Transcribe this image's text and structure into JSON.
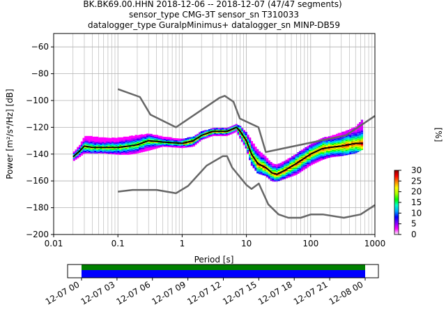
{
  "title_lines": [
    "BK.BK69.00.HHN   2018-12-06 -- 2018-12-07  (47/47 segments)",
    "sensor_type CMG-3T sensor_sn T310033",
    "datalogger_type GuralpMinimus+ datalogger_sn MINP-DB59"
  ],
  "chart_data": [
    {
      "type": "heatmap",
      "xlabel": "Period [s]",
      "ylabel": "Power [m²/s⁴/Hz] [dB]",
      "x_scale": "log",
      "xlim": [
        0.01,
        1000
      ],
      "ylim": [
        -200,
        -50
      ],
      "x_ticks": [
        0.01,
        0.1,
        1,
        10,
        100,
        1000
      ],
      "x_tick_labels": [
        "0.01",
        "0.1",
        "1",
        "10",
        "100",
        "1000"
      ],
      "y_ticks": [
        -200,
        -180,
        -160,
        -140,
        -120,
        -100,
        -80,
        -60
      ],
      "y_tick_labels": [
        "−200",
        "−180",
        "−160",
        "−140",
        "−120",
        "−100",
        "−80",
        "−60"
      ],
      "grid": true,
      "colorbar": {
        "label": "[%]",
        "range": [
          0,
          30
        ],
        "ticks": [
          0,
          5,
          10,
          15,
          20,
          25,
          30
        ],
        "colors": [
          "#ffffff",
          "#ff00ff",
          "#7a00ff",
          "#0000ff",
          "#00aaff",
          "#00ffcc",
          "#00ff00",
          "#aaff00",
          "#ffff00",
          "#ff8800",
          "#ff0000",
          "#880000"
        ]
      },
      "series": [
        {
          "role": "noise-model-high",
          "color": "#666666",
          "x": [
            0.1,
            0.22,
            0.32,
            0.8,
            3.8,
            4.6,
            6.3,
            7.9,
            15.4,
            20.0,
            354.8,
            1000
          ],
          "y": [
            -91.5,
            -97.4,
            -110.5,
            -120.0,
            -98.0,
            -96.5,
            -101.0,
            -113.5,
            -120.0,
            -138.5,
            -126.0,
            -111.5
          ]
        },
        {
          "role": "noise-model-low",
          "color": "#666666",
          "x": [
            0.1,
            0.17,
            0.4,
            0.8,
            1.24,
            2.4,
            4.3,
            5.0,
            6.0,
            10.0,
            12.0,
            15.6,
            21.9,
            31.6,
            45.0,
            70.0,
            101.0,
            154.0,
            328.0,
            600.0,
            1000
          ],
          "y": [
            -168.0,
            -166.7,
            -166.7,
            -169.2,
            -163.7,
            -148.6,
            -141.5,
            -141.5,
            -150.0,
            -163.0,
            -166.0,
            -162.0,
            -177.5,
            -185.0,
            -187.5,
            -187.5,
            -185.0,
            -185.0,
            -187.5,
            -185.0,
            -178.0
          ]
        },
        {
          "role": "mode",
          "color": "#000000",
          "x": [
            0.02,
            0.025,
            0.03,
            0.04,
            0.06,
            0.1,
            0.15,
            0.2,
            0.3,
            0.5,
            1.0,
            1.5,
            2.0,
            3.0,
            5.0,
            7.0,
            8.0,
            10.0,
            12.0,
            15.0,
            20.0,
            25.0,
            30.0,
            40.0,
            60.0,
            100.0,
            150.0,
            200.0,
            300.0,
            500.0,
            650.0
          ],
          "y": [
            -142,
            -138,
            -134,
            -135,
            -135,
            -135,
            -134,
            -133,
            -130,
            -131,
            -132,
            -130,
            -126,
            -123,
            -123,
            -120,
            -123,
            -130,
            -140,
            -147,
            -150,
            -154,
            -155,
            -152,
            -147,
            -140,
            -136,
            -135,
            -134,
            -132,
            -132
          ]
        }
      ],
      "heatmap_bands": [
        {
          "x": [
            0.02,
            0.025,
            0.03,
            0.04,
            0.06,
            0.1,
            0.15,
            0.2,
            0.3,
            0.5,
            1.0,
            1.5,
            2.0,
            3.0,
            5.0,
            7.0,
            8.0,
            10.0,
            12.0,
            15.0,
            20.0,
            25.0,
            30.0,
            40.0,
            60.0,
            100.0,
            150.0,
            200.0,
            300.0,
            500.0,
            650.0
          ],
          "y_high": [
            -139,
            -134,
            -127,
            -127,
            -128,
            -128,
            -127,
            -126,
            -125,
            -127,
            -129,
            -127,
            -123,
            -121,
            -121,
            -118,
            -119,
            -124,
            -130,
            -137,
            -142,
            -147,
            -148,
            -145,
            -140,
            -133,
            -128,
            -127,
            -124,
            -120,
            -114
          ],
          "y_low": [
            -145,
            -142,
            -139,
            -139,
            -139,
            -140,
            -140,
            -139,
            -137,
            -134,
            -135,
            -134,
            -129,
            -126,
            -126,
            -123,
            -128,
            -136,
            -148,
            -154,
            -156,
            -160,
            -160,
            -158,
            -155,
            -148,
            -144,
            -142,
            -141,
            -139,
            -136
          ]
        }
      ]
    },
    {
      "type": "timeline",
      "xlim_labels": [
        "12-07 00",
        "12-08 00"
      ],
      "tick_labels": [
        "12-07 00",
        "12-07 03",
        "12-07 06",
        "12-07 09",
        "12-07 12",
        "12-07 15",
        "12-07 18",
        "12-07 21",
        "12-08 00"
      ],
      "rows": [
        {
          "role": "segments",
          "color": "#008000",
          "start_fraction": 0.0,
          "end_fraction": 1.0
        },
        {
          "role": "data",
          "color": "#0000ff",
          "start_fraction": 0.0,
          "end_fraction": 1.0
        }
      ]
    }
  ]
}
